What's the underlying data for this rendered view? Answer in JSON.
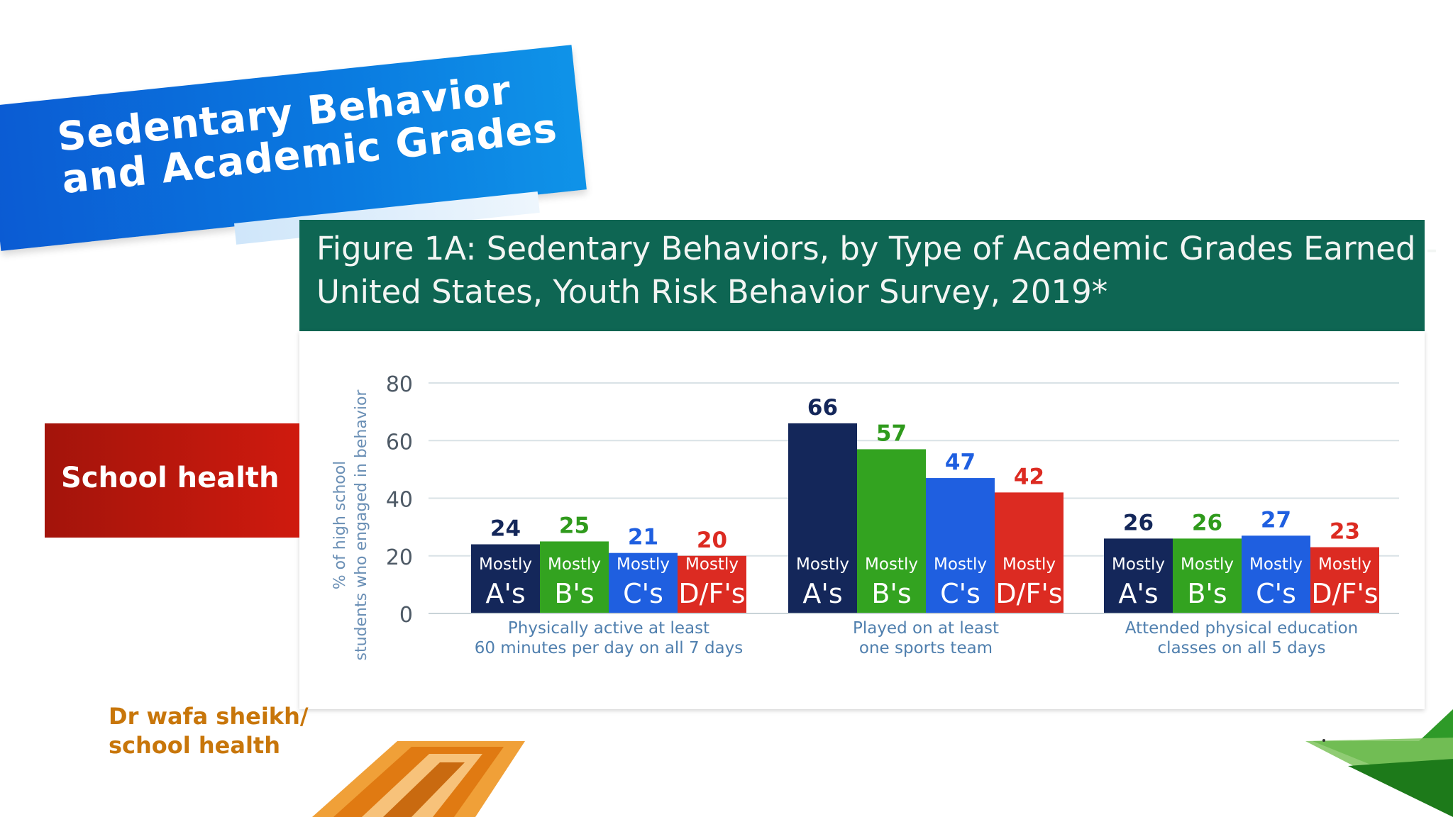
{
  "slide": {
    "banner_line1": "Sedentary Behavior",
    "banner_line2": "and Academic Grades",
    "side_label": "School health",
    "author_line1": "Dr wafa sheikh/",
    "author_line2": "school health"
  },
  "figure": {
    "title_line1": "Figure 1A: Sedentary Behaviors, by Type of Academic Grades Earned -",
    "title_line2": "United States, Youth Risk Behavior Survey, 2019*"
  },
  "colors": {
    "banner_blue": "#0b6fdc",
    "header_green": "#0e6653",
    "side_red": "#c0180d",
    "author_orange": "#c8760a"
  },
  "chart_data": {
    "type": "bar",
    "ylabel": "% of high school students who engaged in behavior",
    "ylim": [
      0,
      80
    ],
    "yticks": [
      0,
      20,
      40,
      60,
      80
    ],
    "grid": true,
    "groups": [
      {
        "label_line1": "Physically active at least",
        "label_line2": "60 minutes per day on all 7 days"
      },
      {
        "label_line1": "Played on at least",
        "label_line2": "one sports team"
      },
      {
        "label_line1": "Attended physical education",
        "label_line2": "classes on all 5 days"
      }
    ],
    "series": [
      {
        "name": "Mostly A's",
        "word": "Mostly",
        "grade": "A's",
        "color": "#14275a",
        "values": [
          24,
          66,
          26
        ]
      },
      {
        "name": "Mostly B's",
        "word": "Mostly",
        "grade": "B's",
        "color": "#33a320",
        "values": [
          25,
          57,
          26
        ]
      },
      {
        "name": "Mostly C's",
        "word": "Mostly",
        "grade": "C's",
        "color": "#1f5fe0",
        "values": [
          21,
          47,
          27
        ]
      },
      {
        "name": "Mostly D/F's",
        "word": "Mostly",
        "grade": "D/F's",
        "color": "#dc2b22",
        "values": [
          20,
          42,
          23
        ]
      }
    ]
  }
}
